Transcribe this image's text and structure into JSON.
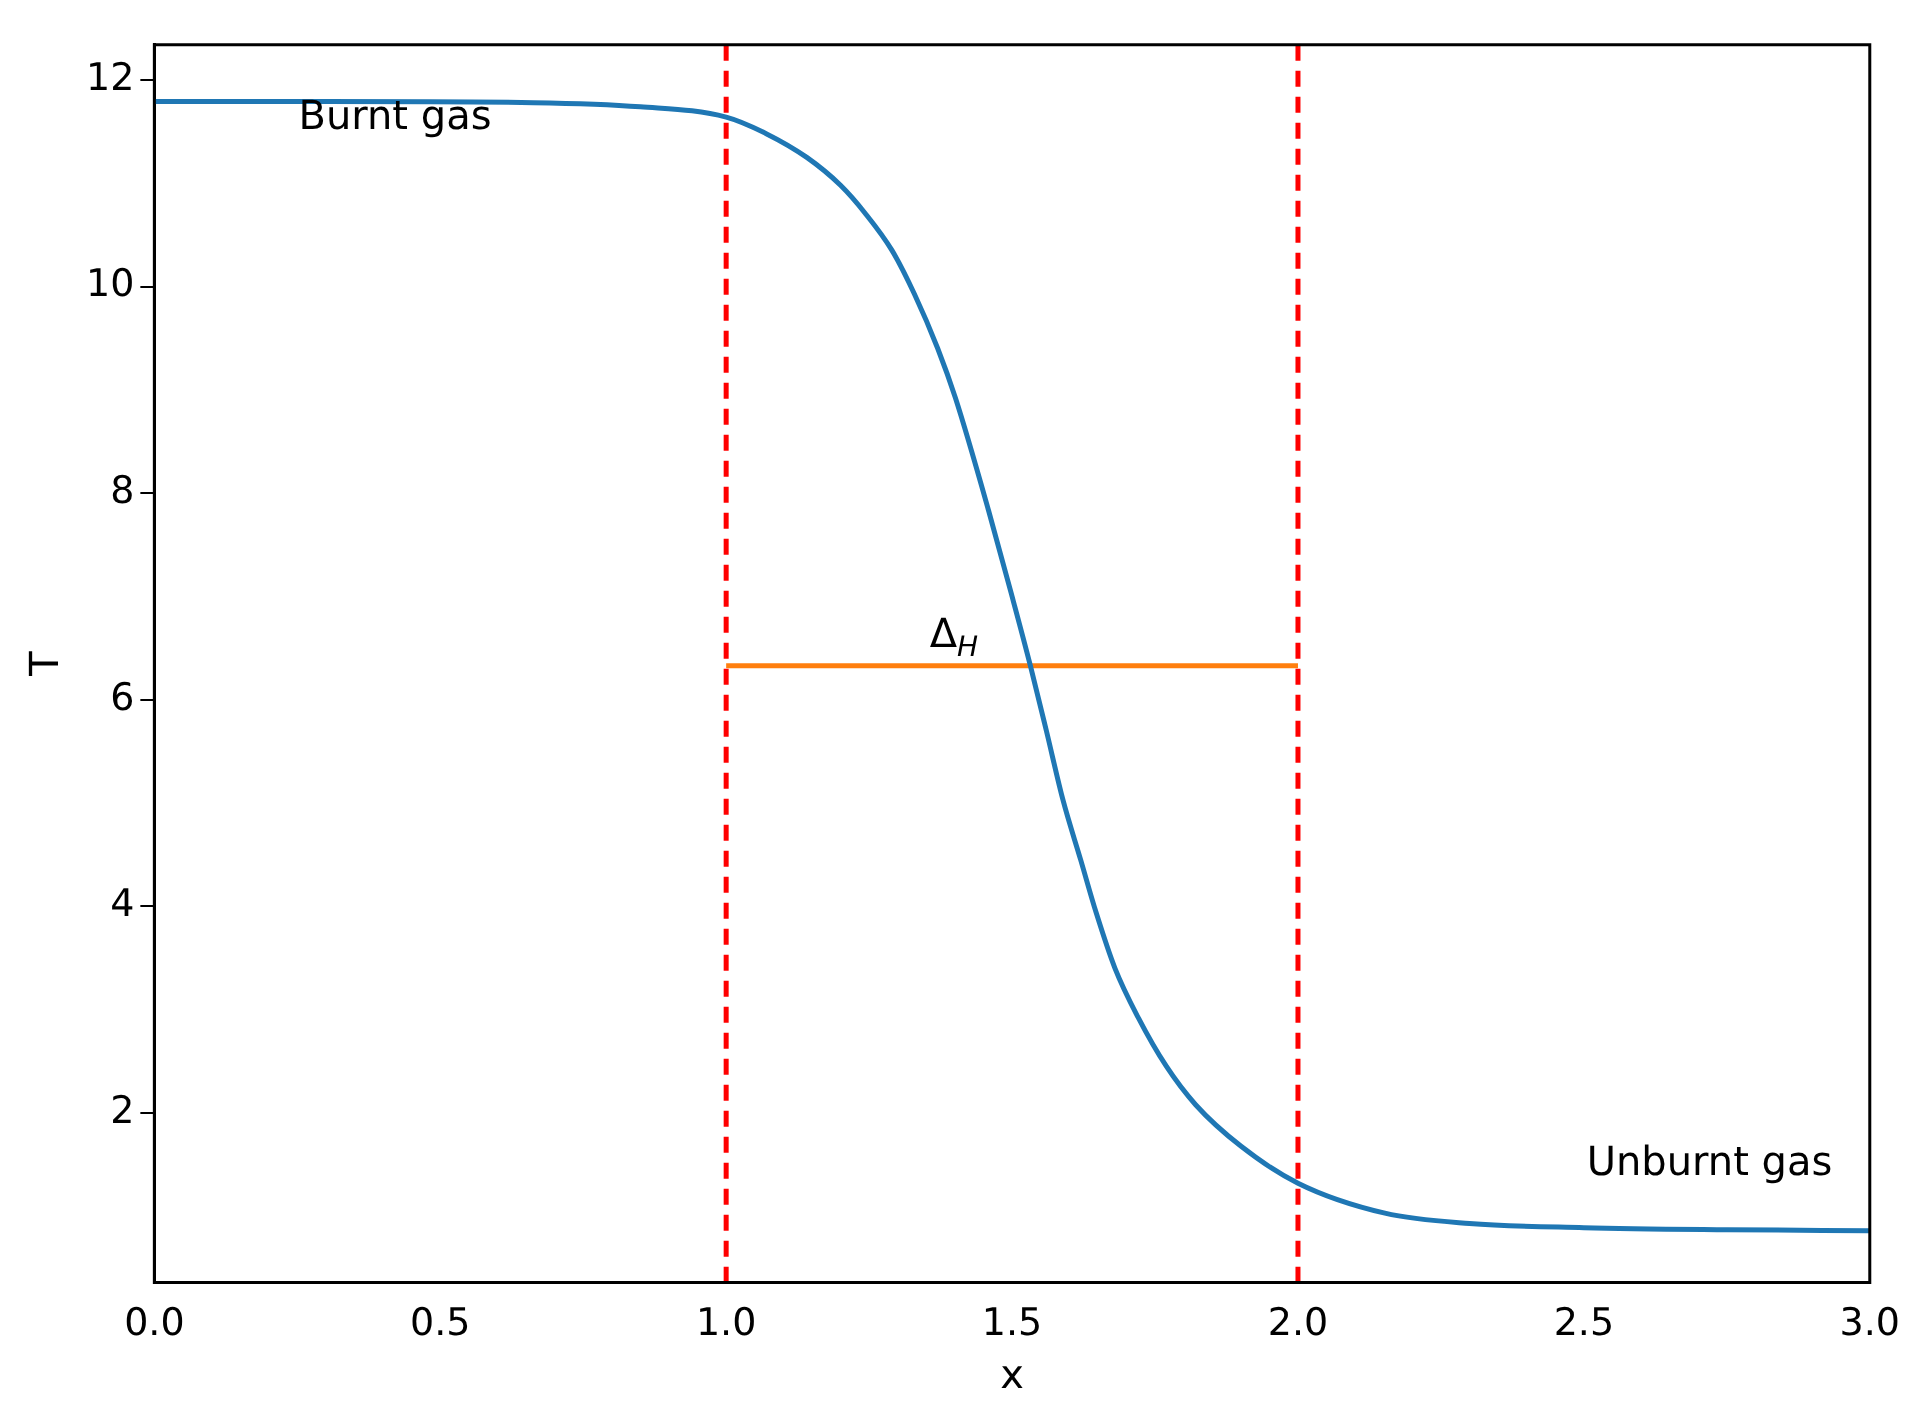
{
  "chart_data": {
    "type": "line",
    "xlabel": "x",
    "ylabel": "T",
    "xlim": [
      0,
      3
    ],
    "xticks": [
      {
        "value": 0,
        "label": "0.0"
      },
      0.5,
      {
        "value": 1,
        "label": "1.0"
      },
      1.5,
      {
        "value": 2,
        "label": "2.0"
      },
      2.5,
      {
        "value": 3,
        "label": "3.0"
      }
    ],
    "ylim": [
      0.36,
      12.34
    ],
    "yticks": [
      2,
      4,
      6,
      8,
      10,
      12
    ],
    "grid": false,
    "legend": false,
    "marker": "none",
    "line_style": "solid",
    "series": [
      {
        "color": "#1f77b4",
        "x": [
          0,
          0.3,
          0.663,
          0.85,
          1.0,
          1.07,
          1.141,
          1.2,
          1.243,
          1.29,
          1.329,
          1.37,
          1.401,
          1.459,
          1.5,
          1.532,
          1.56,
          1.589,
          1.62,
          1.647,
          1.68,
          1.72,
          1.77,
          1.821,
          1.9,
          2.0,
          2.152,
          2.3,
          2.5,
          2.75,
          3.0
        ],
        "values": [
          11.79,
          11.79,
          11.78,
          11.74,
          11.64,
          11.48,
          11.25,
          10.98,
          10.71,
          10.35,
          9.93,
          9.4,
          8.92,
          7.83,
          7.0,
          6.33,
          5.7,
          5.03,
          4.45,
          3.94,
          3.4,
          2.93,
          2.45,
          2.08,
          1.68,
          1.32,
          1.03,
          0.93,
          0.89,
          0.87,
          0.86
        ]
      },
      {
        "color": "#ff7f0e",
        "x": [
          1,
          2
        ],
        "values": [
          6.33,
          6.33
        ]
      }
    ],
    "ref_lines": [
      {
        "axis": "x",
        "value": 1,
        "color": "#ff0000",
        "line_style": "dashed"
      },
      {
        "axis": "x",
        "value": 2,
        "color": "#ff0000",
        "line_style": "dashed"
      }
    ],
    "annotations": [
      "Burnt gas",
      "Unburnt gas",
      "Δ$_{H}$"
    ]
  }
}
